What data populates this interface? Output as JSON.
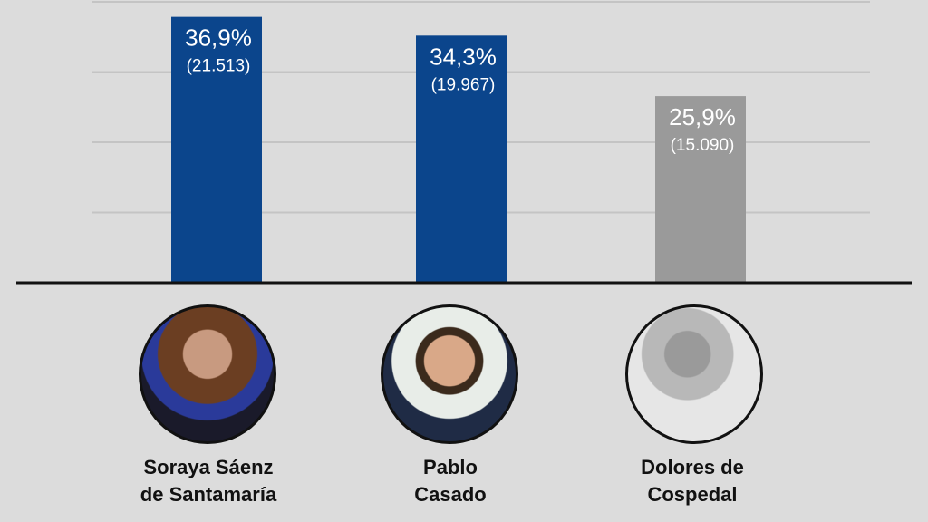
{
  "chart_data": {
    "type": "bar",
    "categories": [
      "Soraya Sáenz de Santamaría",
      "Pablo Casado",
      "Dolores de Cospedal"
    ],
    "values": [
      36.9,
      34.3,
      25.9
    ],
    "value_labels": [
      "36,9%",
      "34,3%",
      "25,9%"
    ],
    "count_labels": [
      "(21.513)",
      "(19.967)",
      "(15.090)"
    ],
    "colors": [
      "#0b458c",
      "#0b458c",
      "#9a9a9a"
    ],
    "ylim": [
      0,
      40
    ],
    "grid": true,
    "title": "",
    "xlabel": "",
    "ylabel": ""
  },
  "candidates": [
    {
      "line1": "Soraya Sáenz",
      "line2": "de Santamaría",
      "photo": "portrait-photo"
    },
    {
      "line1": "Pablo",
      "line2": "Casado",
      "photo": "portrait-photo"
    },
    {
      "line1": "Dolores de",
      "line2": "Cospedal",
      "photo": "portrait-photo-grayscale"
    }
  ]
}
